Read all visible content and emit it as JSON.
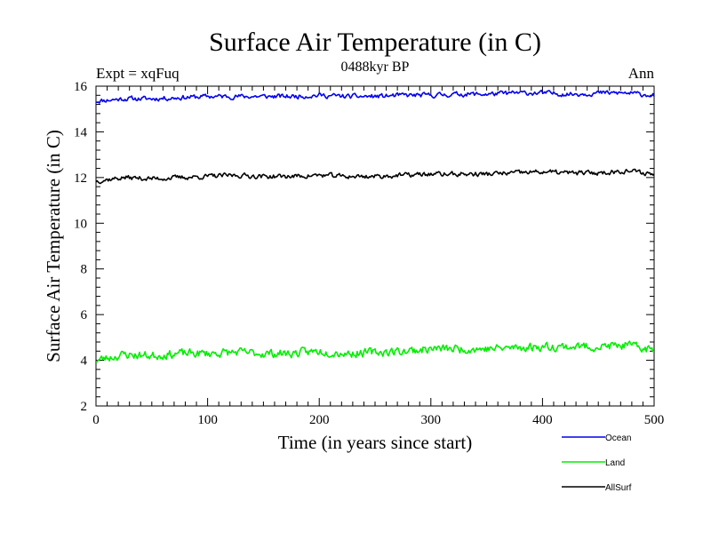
{
  "chart_data": {
    "type": "line",
    "title": "Surface Air Temperature (in C)",
    "subtitle": "0488kyr BP",
    "experiment_label": "Expt = xqFuq",
    "season_label": "Ann",
    "xlabel": "Time (in years since start)",
    "ylabel": "Surface Air Temperature (in C)",
    "xlim": [
      0,
      500
    ],
    "ylim": [
      2,
      16
    ],
    "xticks": [
      0,
      100,
      200,
      300,
      400,
      500
    ],
    "yticks": [
      2,
      4,
      6,
      8,
      10,
      12,
      14,
      16
    ],
    "series": [
      {
        "name": "Ocean",
        "color": "#0000ee",
        "start": 15.35,
        "end": 15.65,
        "noise": 0.09,
        "seed": 11,
        "x": [
          0,
          25,
          50,
          75,
          100,
          125,
          150,
          175,
          200,
          225,
          250,
          275,
          300,
          325,
          350,
          375,
          400,
          425,
          450,
          475,
          500
        ],
        "values": [
          15.35,
          15.45,
          15.45,
          15.5,
          15.55,
          15.55,
          15.55,
          15.55,
          15.6,
          15.55,
          15.55,
          15.6,
          15.6,
          15.65,
          15.65,
          15.7,
          15.7,
          15.65,
          15.7,
          15.7,
          15.6
        ]
      },
      {
        "name": "Land",
        "color": "#00ee00",
        "start": 4.0,
        "end": 4.5,
        "noise": 0.16,
        "seed": 23,
        "x": [
          0,
          25,
          50,
          75,
          100,
          125,
          150,
          175,
          200,
          225,
          250,
          275,
          300,
          325,
          350,
          375,
          400,
          425,
          450,
          475,
          500
        ],
        "values": [
          4.0,
          4.25,
          4.2,
          4.3,
          4.3,
          4.35,
          4.3,
          4.3,
          4.4,
          4.3,
          4.35,
          4.4,
          4.5,
          4.5,
          4.5,
          4.55,
          4.6,
          4.6,
          4.6,
          4.65,
          4.45
        ]
      },
      {
        "name": "AllSurf",
        "color": "#000000",
        "start": 11.85,
        "end": 12.15,
        "noise": 0.09,
        "seed": 37,
        "x": [
          0,
          25,
          50,
          75,
          100,
          125,
          150,
          175,
          200,
          225,
          250,
          275,
          300,
          325,
          350,
          375,
          400,
          425,
          450,
          475,
          500
        ],
        "values": [
          11.85,
          12.0,
          11.95,
          12.0,
          12.05,
          12.1,
          12.05,
          12.05,
          12.1,
          12.05,
          12.05,
          12.1,
          12.15,
          12.15,
          12.15,
          12.2,
          12.25,
          12.2,
          12.2,
          12.3,
          12.15
        ]
      }
    ],
    "legend": [
      "Ocean",
      "Land",
      "AllSurf"
    ],
    "legend_position": "bottom-right"
  }
}
